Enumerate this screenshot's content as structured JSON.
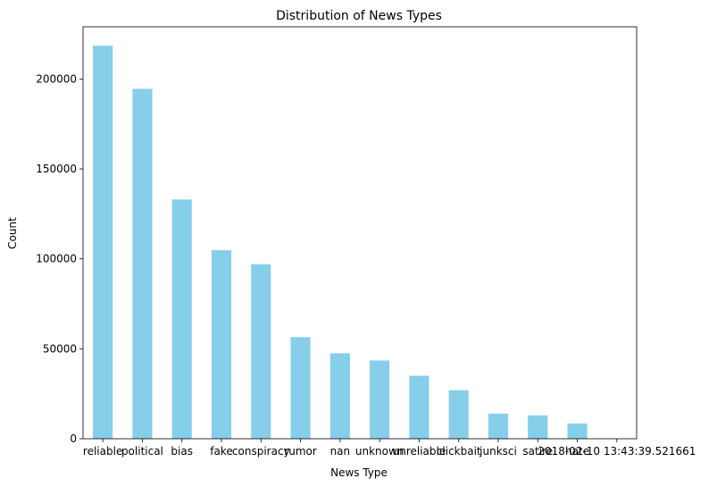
{
  "chart_data": {
    "type": "bar",
    "title": "Distribution of News Types",
    "xlabel": "News Type",
    "ylabel": "Count",
    "categories": [
      "reliable",
      "political",
      "bias",
      "fake",
      "conspiracy",
      "rumor",
      "nan",
      "unknown",
      "unreliable",
      "clickbait",
      "junksci",
      "satire",
      "hate",
      "2018-02-10 13:43:39.521661"
    ],
    "values": [
      218500,
      194500,
      133000,
      104800,
      97000,
      56500,
      47500,
      43500,
      35000,
      27000,
      14000,
      13000,
      8500,
      1
    ],
    "ylim": [
      0,
      229000
    ],
    "yticks": [
      0,
      50000,
      100000,
      150000,
      200000
    ],
    "bar_color": "#87ceeb",
    "grid": false,
    "legend": false
  }
}
